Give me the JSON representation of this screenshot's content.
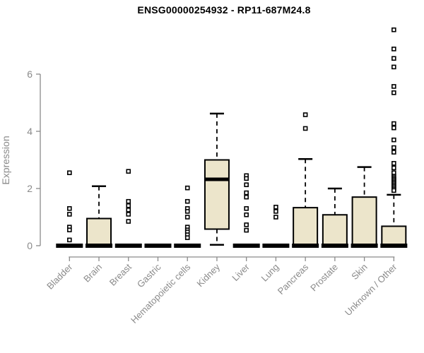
{
  "title": "ENSG00000254932 - RP11-687M24.8",
  "ylabel": "Expression",
  "chart_data": {
    "type": "boxplot",
    "title": "ENSG00000254932 - RP11-687M24.8",
    "ylabel": "Expression",
    "xlabel": "",
    "yticks": [
      0,
      2,
      4,
      6
    ],
    "ylim": [
      0,
      7.6
    ],
    "grid": false,
    "legend": "none",
    "colors": {
      "box_fill": "#ECE5CB",
      "box_stroke": "#000000",
      "median_color": "#000000",
      "outlier_stroke": "#000000",
      "outlier_fill": "#ffffff",
      "axis_color": "#8a8a8a",
      "tick_label_color": "#8a8a8a",
      "title_color": "#000000"
    },
    "categories": [
      "Bladder",
      "Brain",
      "Breast",
      "Gastric",
      "Hematopoietic cells",
      "Kidney",
      "Liver",
      "Lung",
      "Pancreas",
      "Prostate",
      "Skin",
      "Unknown / Other"
    ],
    "boxes": [
      {
        "category": "Bladder",
        "whisker_low": 0,
        "q1": 0,
        "median": 0,
        "q3": 0,
        "whisker_high": 0,
        "outliers": [
          2.55,
          1.3,
          1.1,
          0.65,
          0.55,
          0.2
        ]
      },
      {
        "category": "Brain",
        "whisker_low": 0,
        "q1": 0,
        "median": 0,
        "q3": 0.95,
        "whisker_high": 2.08,
        "outliers": []
      },
      {
        "category": "Breast",
        "whisker_low": 0,
        "q1": 0,
        "median": 0,
        "q3": 0,
        "whisker_high": 0,
        "outliers": [
          2.6,
          1.55,
          1.4,
          1.25,
          1.1,
          0.85
        ]
      },
      {
        "category": "Gastric",
        "whisker_low": 0,
        "q1": 0,
        "median": 0,
        "q3": 0,
        "whisker_high": 0,
        "outliers": []
      },
      {
        "category": "Hematopoietic cells",
        "whisker_low": 0,
        "q1": 0,
        "median": 0,
        "q3": 0,
        "whisker_high": 0,
        "outliers": [
          2.02,
          1.55,
          1.3,
          1.2,
          1.0,
          0.65,
          0.55,
          0.48,
          0.38,
          0.28
        ]
      },
      {
        "category": "Kidney",
        "whisker_low": 0.03,
        "q1": 0.58,
        "median": 2.32,
        "q3": 3.0,
        "whisker_high": 4.62,
        "outliers": []
      },
      {
        "category": "Liver",
        "whisker_low": 0,
        "q1": 0,
        "median": 0,
        "q3": 0,
        "whisker_high": 0,
        "outliers": [
          2.45,
          2.35,
          2.13,
          1.85,
          1.7,
          1.3,
          1.08,
          0.73,
          0.54
        ]
      },
      {
        "category": "Lung",
        "whisker_low": 0,
        "q1": 0,
        "median": 0,
        "q3": 0,
        "whisker_high": 0,
        "outliers": [
          1.35,
          1.2,
          1.0
        ]
      },
      {
        "category": "Pancreas",
        "whisker_low": 0,
        "q1": 0,
        "median": 0,
        "q3": 1.33,
        "whisker_high": 3.03,
        "outliers": [
          4.58,
          4.1
        ]
      },
      {
        "category": "Prostate",
        "whisker_low": 0,
        "q1": 0,
        "median": 0,
        "q3": 1.08,
        "whisker_high": 2.0,
        "outliers": []
      },
      {
        "category": "Skin",
        "whisker_low": 0,
        "q1": 0,
        "median": 0,
        "q3": 1.7,
        "whisker_high": 2.75,
        "outliers": []
      },
      {
        "category": "Unknown / Other",
        "whisker_low": 0,
        "q1": 0,
        "median": 0,
        "q3": 0.68,
        "whisker_high": 1.78,
        "outliers": [
          7.55,
          6.88,
          6.55,
          6.25,
          5.57,
          5.35,
          4.27,
          4.12,
          3.7,
          3.43,
          3.27,
          2.88,
          2.72,
          2.55,
          2.43,
          2.38,
          2.33,
          2.28,
          2.23,
          2.18,
          2.13,
          2.08,
          2.03,
          1.98,
          1.93
        ]
      }
    ]
  }
}
